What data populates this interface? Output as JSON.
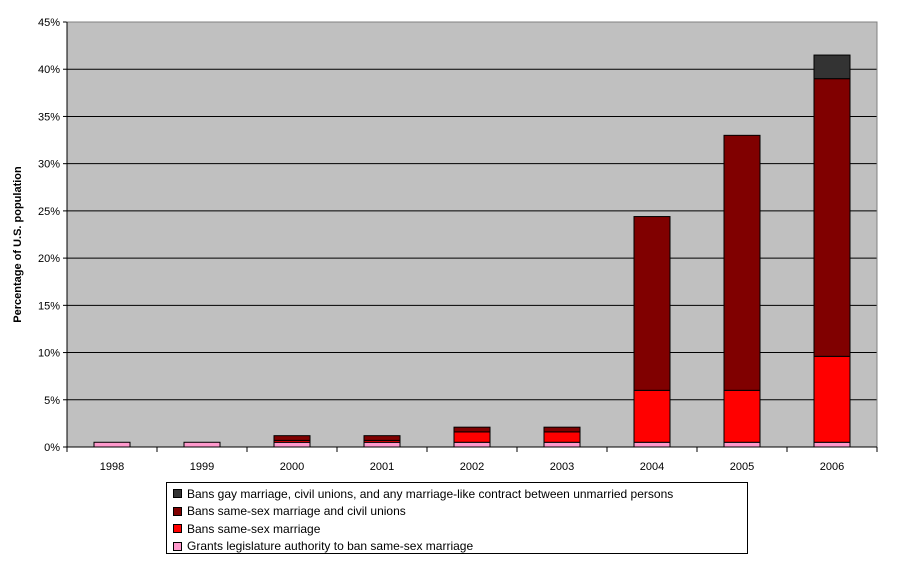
{
  "chart_data": {
    "type": "bar",
    "stacked": true,
    "title": "",
    "xlabel": "",
    "ylabel": "Percentage of U.S. population",
    "ylim": [
      0,
      45
    ],
    "yticks": [
      "0%",
      "5%",
      "10%",
      "15%",
      "20%",
      "25%",
      "30%",
      "35%",
      "40%",
      "45%"
    ],
    "grid": true,
    "plot_background": "#C0C0C0",
    "legend_position": "bottom",
    "categories": [
      "1998",
      "1999",
      "2000",
      "2001",
      "2002",
      "2003",
      "2004",
      "2005",
      "2006"
    ],
    "series": [
      {
        "name": "Grants legislature authority to ban same-sex marriage",
        "color": "#FF99CC",
        "values": [
          0.5,
          0.5,
          0.5,
          0.5,
          0.5,
          0.5,
          0.5,
          0.5,
          0.5
        ]
      },
      {
        "name": "Bans same-sex marriage",
        "color": "#FF0000",
        "values": [
          0,
          0,
          0.2,
          0.2,
          1.1,
          1.1,
          5.5,
          5.5,
          9.1
        ]
      },
      {
        "name": "Bans same-sex marriage and civil unions",
        "color": "#800000",
        "values": [
          0,
          0,
          0.5,
          0.5,
          0.5,
          0.5,
          18.4,
          27,
          29.4
        ]
      },
      {
        "name": "Bans gay marriage, civil unions, and any marriage-like contract between unmarried persons",
        "color": "#333333",
        "values": [
          0,
          0,
          0,
          0,
          0,
          0,
          0,
          0,
          2.5
        ]
      }
    ]
  }
}
